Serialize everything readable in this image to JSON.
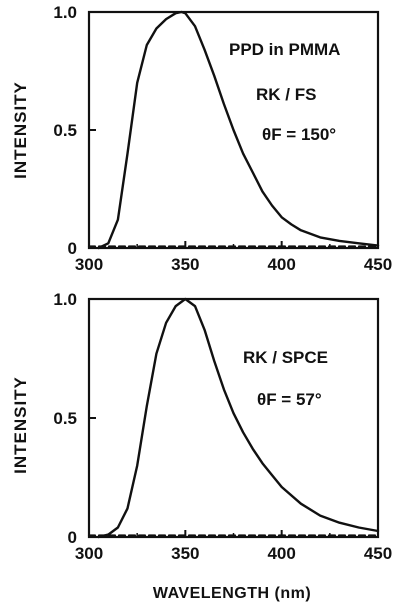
{
  "chart_data": [
    {
      "type": "line",
      "ylabel": "INTENSITY",
      "xlim": [
        300,
        450
      ],
      "ylim": [
        0,
        1.0
      ],
      "xticks": [
        "300",
        "350",
        "400",
        "450"
      ],
      "yticks": [
        "0",
        "0.5",
        "1.0"
      ],
      "annotations": [
        "PPD in PMMA",
        "RK / FS",
        "θF = 150°"
      ],
      "series": [
        {
          "style": "solid",
          "x": [
            305,
            310,
            315,
            320,
            325,
            330,
            335,
            340,
            345,
            348,
            350,
            355,
            360,
            365,
            370,
            375,
            380,
            385,
            390,
            395,
            400,
            405,
            410,
            420,
            430,
            440,
            450
          ],
          "values": [
            0.0,
            0.02,
            0.12,
            0.4,
            0.7,
            0.86,
            0.93,
            0.97,
            0.995,
            1.0,
            0.995,
            0.94,
            0.84,
            0.73,
            0.61,
            0.5,
            0.4,
            0.32,
            0.24,
            0.18,
            0.13,
            0.1,
            0.075,
            0.045,
            0.03,
            0.02,
            0.01
          ]
        },
        {
          "style": "dashed",
          "x": [
            300,
            450
          ],
          "values": [
            0.0,
            0.0
          ]
        }
      ]
    },
    {
      "type": "line",
      "ylabel": "INTENSITY",
      "xlim": [
        300,
        450
      ],
      "ylim": [
        0,
        1.0
      ],
      "xticks": [
        "300",
        "350",
        "400",
        "450"
      ],
      "yticks": [
        "0",
        "0.5",
        "1.0"
      ],
      "annotations": [
        "RK / SPCE",
        "θF = 57°"
      ],
      "series": [
        {
          "style": "solid",
          "x": [
            305,
            310,
            315,
            320,
            325,
            330,
            335,
            340,
            345,
            350,
            355,
            360,
            365,
            370,
            375,
            380,
            385,
            390,
            395,
            400,
            410,
            420,
            430,
            440,
            450
          ],
          "values": [
            0.0,
            0.01,
            0.04,
            0.12,
            0.3,
            0.55,
            0.77,
            0.9,
            0.97,
            1.0,
            0.97,
            0.87,
            0.74,
            0.62,
            0.52,
            0.44,
            0.37,
            0.31,
            0.26,
            0.21,
            0.14,
            0.09,
            0.06,
            0.04,
            0.025
          ]
        },
        {
          "style": "dashed",
          "x": [
            300,
            450
          ],
          "values": [
            0.0,
            0.0
          ]
        }
      ]
    }
  ],
  "figure": {
    "xlabel": "WAVELENGTH (nm)"
  }
}
